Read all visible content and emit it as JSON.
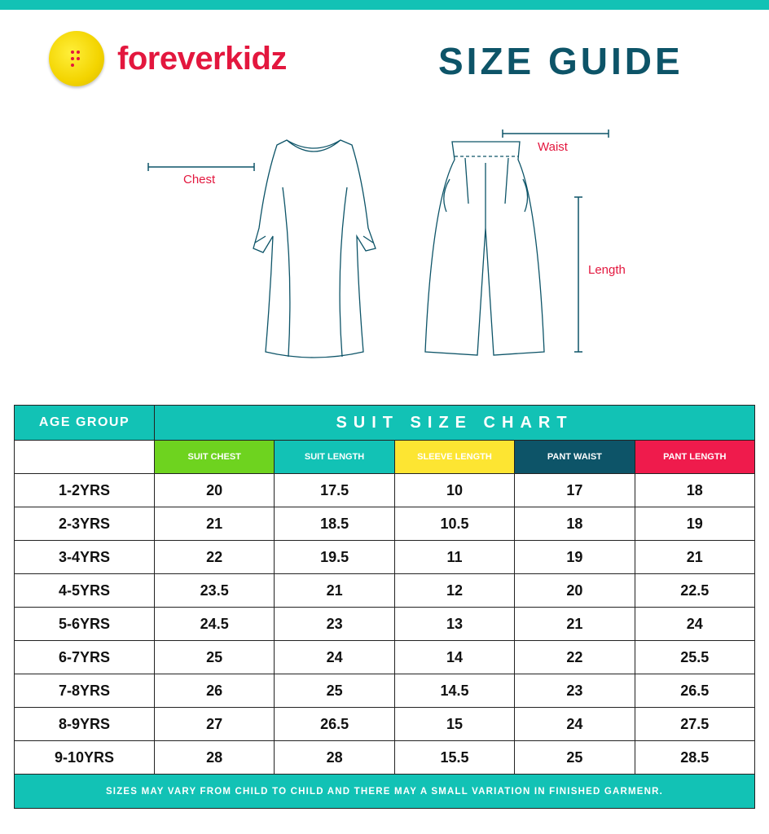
{
  "brand": {
    "name": "foreverkidz",
    "colors": {
      "red": "#e3173e",
      "yellow": "#f3d400",
      "teal": "#12c2b5",
      "navy": "#0d5468"
    }
  },
  "title": "SIZE GUIDE",
  "diagram": {
    "chest": "Chest",
    "waist": "Waist",
    "length": "Length"
  },
  "table": {
    "age_header": "AGE GROUP",
    "chart_header": "SUIT SIZE CHART",
    "columns": [
      {
        "label": "SUIT CHEST",
        "color": "#6ed31f"
      },
      {
        "label": "SUIT LENGTH",
        "color": "#12c2b5"
      },
      {
        "label": "SLEEVE LENGTH",
        "color": "#fde532"
      },
      {
        "label": "PANT WAIST",
        "color": "#0d5468"
      },
      {
        "label": "PANT LENGTH",
        "color": "#ef1b4c"
      }
    ],
    "rows": [
      {
        "age": "1-2YRS",
        "values": [
          "20",
          "17.5",
          "10",
          "17",
          "18"
        ]
      },
      {
        "age": "2-3YRS",
        "values": [
          "21",
          "18.5",
          "10.5",
          "18",
          "19"
        ]
      },
      {
        "age": "3-4YRS",
        "values": [
          "22",
          "19.5",
          "11",
          "19",
          "21"
        ]
      },
      {
        "age": "4-5YRS",
        "values": [
          "23.5",
          "21",
          "12",
          "20",
          "22.5"
        ]
      },
      {
        "age": "5-6YRS",
        "values": [
          "24.5",
          "23",
          "13",
          "21",
          "24"
        ]
      },
      {
        "age": "6-7YRS",
        "values": [
          "25",
          "24",
          "14",
          "22",
          "25.5"
        ]
      },
      {
        "age": "7-8YRS",
        "values": [
          "26",
          "25",
          "14.5",
          "23",
          "26.5"
        ]
      },
      {
        "age": "8-9YRS",
        "values": [
          "27",
          "26.5",
          "15",
          "24",
          "27.5"
        ]
      },
      {
        "age": "9-10YRS",
        "values": [
          "28",
          "28",
          "15.5",
          "25",
          "28.5"
        ]
      }
    ],
    "footer": "SIZES MAY VARY FROM CHILD TO CHILD AND THERE MAY A SMALL VARIATION IN FINISHED GARMENR."
  }
}
